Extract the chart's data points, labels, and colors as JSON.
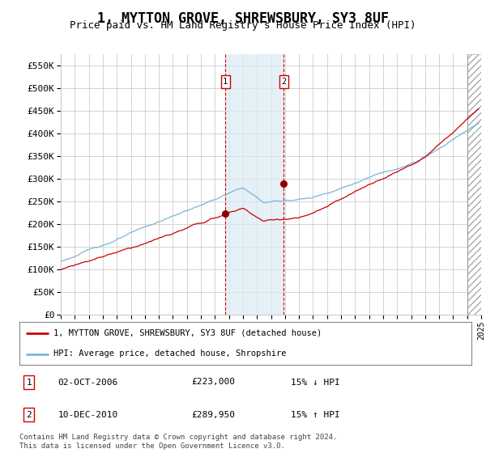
{
  "title": "1, MYTTON GROVE, SHREWSBURY, SY3 8UF",
  "subtitle": "Price paid vs. HM Land Registry's House Price Index (HPI)",
  "ylim": [
    0,
    575000
  ],
  "yticks": [
    0,
    50000,
    100000,
    150000,
    200000,
    250000,
    300000,
    350000,
    400000,
    450000,
    500000,
    550000
  ],
  "ytick_labels": [
    "£0",
    "£50K",
    "£100K",
    "£150K",
    "£200K",
    "£250K",
    "£300K",
    "£350K",
    "£400K",
    "£450K",
    "£500K",
    "£550K"
  ],
  "x_start_year": 1995,
  "x_end_year": 2025,
  "purchase1_year": 2006.75,
  "purchase1_price": 223000,
  "purchase2_year": 2010.92,
  "purchase2_price": 289950,
  "purchase1_date": "02-OCT-2006",
  "purchase1_hpi_diff": "15% ↓ HPI",
  "purchase2_date": "10-DEC-2010",
  "purchase2_hpi_diff": "15% ↑ HPI",
  "hpi_line_color": "#7ab5d8",
  "price_line_color": "#cc0000",
  "background_color": "#ffffff",
  "grid_color": "#cccccc",
  "legend_label_red": "1, MYTTON GROVE, SHREWSBURY, SY3 8UF (detached house)",
  "legend_label_blue": "HPI: Average price, detached house, Shropshire",
  "footnote": "Contains HM Land Registry data © Crown copyright and database right 2024.\nThis data is licensed under the Open Government Licence v3.0.",
  "title_fontsize": 12,
  "subtitle_fontsize": 9,
  "tick_fontsize": 8,
  "shade_color": "#daeaf5",
  "hatch_color": "#c8d8e8",
  "box_color": "#cc0000"
}
